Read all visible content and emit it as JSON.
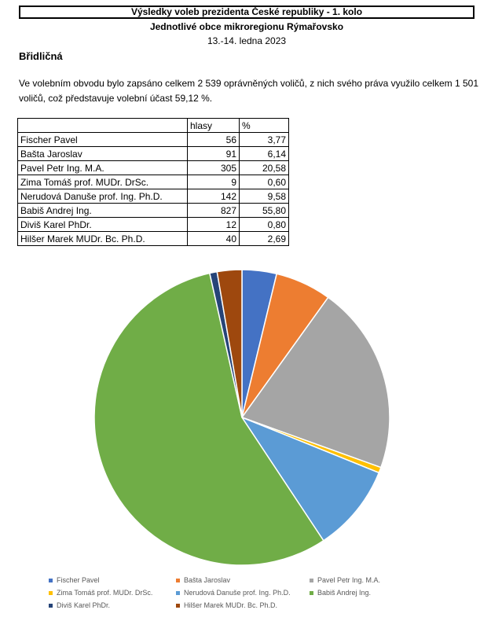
{
  "header": {
    "title": "Výsledky voleb prezidenta České republiky - 1. kolo",
    "subtitle": "Jednotlivé obce mikroregionu Rýmařovsko",
    "dates": "13.-14. ledna 2023"
  },
  "municipality": "Břidličná",
  "summary": "Ve volebním obvodu bylo zapsáno celkem 2 539 oprávněných voličů, z nich svého práva využilo celkem 1 501  voličů, což představuje volební účast 59,12 %.",
  "table": {
    "headers": {
      "name": "",
      "votes": "hlasy",
      "pct": "%"
    },
    "rows": [
      {
        "name": "Fischer Pavel",
        "votes": "56",
        "pct": "3,77"
      },
      {
        "name": "Bašta Jaroslav",
        "votes": "91",
        "pct": "6,14"
      },
      {
        "name": "Pavel Petr Ing. M.A.",
        "votes": "305",
        "pct": "20,58"
      },
      {
        "name": "Zima Tomáš prof. MUDr. DrSc.",
        "votes": "9",
        "pct": "0,60"
      },
      {
        "name": "Nerudová Danuše prof. Ing. Ph.D.",
        "votes": "142",
        "pct": "9,58"
      },
      {
        "name": "Babiš Andrej Ing.",
        "votes": "827",
        "pct": "55,80"
      },
      {
        "name": "Diviš Karel PhDr.",
        "votes": "12",
        "pct": "0,80"
      },
      {
        "name": "Hilšer Marek MUDr. Bc. Ph.D.",
        "votes": "40",
        "pct": "2,69"
      }
    ]
  },
  "chart_data": {
    "type": "pie",
    "categories": [
      "Fischer Pavel",
      "Bašta Jaroslav",
      "Pavel Petr Ing. M.A.",
      "Zima Tomáš prof. MUDr. DrSc.",
      "Nerudová Danuše prof. Ing. Ph.D.",
      "Babiš Andrej Ing.",
      "Diviš Karel PhDr.",
      "Hilšer Marek MUDr. Bc. Ph.D."
    ],
    "values": [
      56,
      91,
      305,
      9,
      142,
      827,
      12,
      40
    ],
    "colors": [
      "#4472C4",
      "#ED7D31",
      "#A5A5A5",
      "#FFC000",
      "#5B9BD5",
      "#70AD47",
      "#264478",
      "#9E480E"
    ],
    "legend_position": "bottom"
  }
}
